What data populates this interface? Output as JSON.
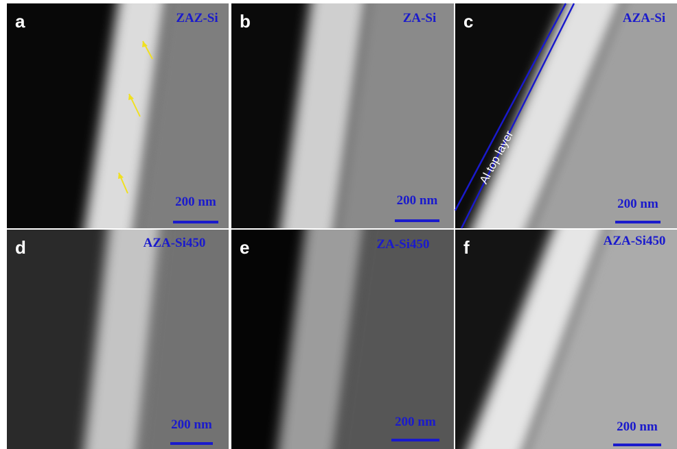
{
  "panels": [
    {
      "letter": "a",
      "label": "ZAZ-Si",
      "scale_bar": "200 nm"
    },
    {
      "letter": "b",
      "label": "ZA-Si",
      "scale_bar": "200 nm"
    },
    {
      "letter": "c",
      "label": "AZA-Si",
      "scale_bar": "200 nm",
      "annotation": "Al top layer"
    },
    {
      "letter": "d",
      "label": "AZA-Si450",
      "scale_bar": "200 nm"
    },
    {
      "letter": "e",
      "label": "ZA-Si450",
      "scale_bar": "200 nm"
    },
    {
      "letter": "f",
      "label": "AZA-Si450",
      "scale_bar": "200 nm"
    }
  ]
}
